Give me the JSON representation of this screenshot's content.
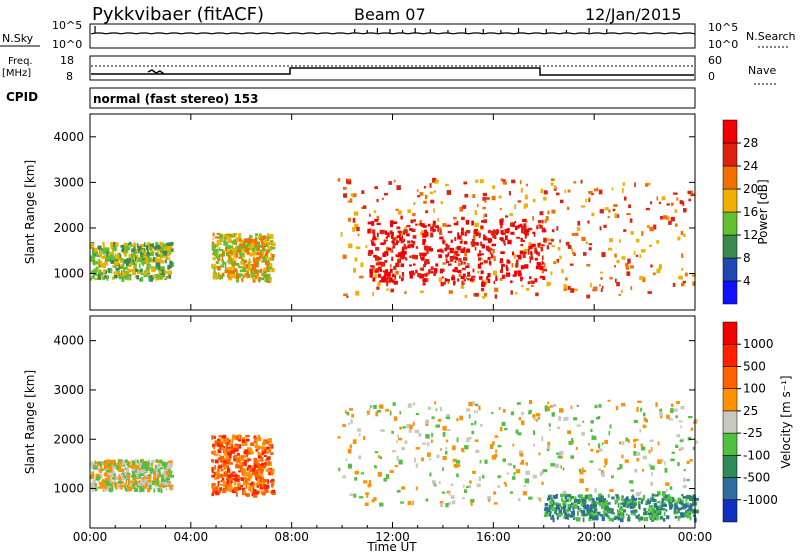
{
  "header": {
    "station": "Pykkvibaer (fitACF)",
    "beam": "Beam 07",
    "date": "12/Jan/2015"
  },
  "nsky_panel": {
    "left_label": "N.Sky",
    "left_ticks": [
      "10^5",
      "10^0"
    ],
    "right_ticks": [
      "10^5",
      "10^0"
    ],
    "right_label": "N.Search"
  },
  "freq_panel": {
    "left_label_1": "Freq.",
    "left_label_2": "[MHz]",
    "left_ticks": [
      "18",
      "8"
    ],
    "right_ticks": [
      "60",
      "0"
    ],
    "right_label": "Nave"
  },
  "cpid": {
    "label": "CPID",
    "text": "normal (fast stereo) 153"
  },
  "chart_data": [
    {
      "type": "heatmap",
      "title": "",
      "xlabel": "Time UT",
      "ylabel": "Slant Range [km]",
      "x_ticks": [
        "00:00",
        "04:00",
        "08:00",
        "12:00",
        "16:00",
        "20:00",
        "00:00"
      ],
      "y_ticks": [
        "1000",
        "2000",
        "3000",
        "4000"
      ],
      "ylim": [
        200,
        4500
      ],
      "colorbar": {
        "label": "Power [dB]",
        "ticks": [
          "4",
          "8",
          "12",
          "16",
          "20",
          "24",
          "28"
        ],
        "colors": [
          "#1010ff",
          "#2048b0",
          "#3a8a50",
          "#60c030",
          "#f0b000",
          "#f07000",
          "#e02010",
          "#f00000"
        ]
      },
      "regions": [
        {
          "t0": 0.0,
          "t1": 3.2,
          "r0": 900,
          "r1": 1700,
          "level": 3
        },
        {
          "t0": 4.8,
          "t1": 7.2,
          "r0": 900,
          "r1": 1900,
          "level": 4
        },
        {
          "t0": 9.8,
          "t1": 24.0,
          "r0": 500,
          "r1": 3100,
          "level": 5
        },
        {
          "t0": 11.0,
          "t1": 18.0,
          "r0": 800,
          "r1": 2200,
          "level": 7
        }
      ]
    },
    {
      "type": "heatmap",
      "title": "",
      "xlabel": "Time UT",
      "ylabel": "Slant Range [km]",
      "x_ticks": [
        "00:00",
        "04:00",
        "08:00",
        "12:00",
        "16:00",
        "20:00",
        "00:00"
      ],
      "y_ticks": [
        "1000",
        "2000",
        "3000",
        "4000"
      ],
      "ylim": [
        200,
        4500
      ],
      "colorbar": {
        "label": "Velocity [m s⁻¹]",
        "ticks": [
          "1000",
          "500",
          "100",
          "25",
          "-25",
          "-100",
          "-500",
          "-1000"
        ],
        "colors": [
          "#1030c0",
          "#2d6da0",
          "#2e8b57",
          "#50c040",
          "#c8c8c0",
          "#ff9000",
          "#ff6000",
          "#ff2000",
          "#f00000"
        ]
      },
      "regions": [
        {
          "t0": 0.0,
          "t1": 3.2,
          "r0": 1000,
          "r1": 1600,
          "level": 4
        },
        {
          "t0": 4.8,
          "t1": 7.2,
          "r0": 900,
          "r1": 2100,
          "level": 6
        },
        {
          "t0": 9.8,
          "t1": 24.0,
          "r0": 700,
          "r1": 2800,
          "level": 4
        },
        {
          "t0": 18.0,
          "t1": 24.0,
          "r0": 400,
          "r1": 900,
          "level": 2
        }
      ]
    }
  ]
}
